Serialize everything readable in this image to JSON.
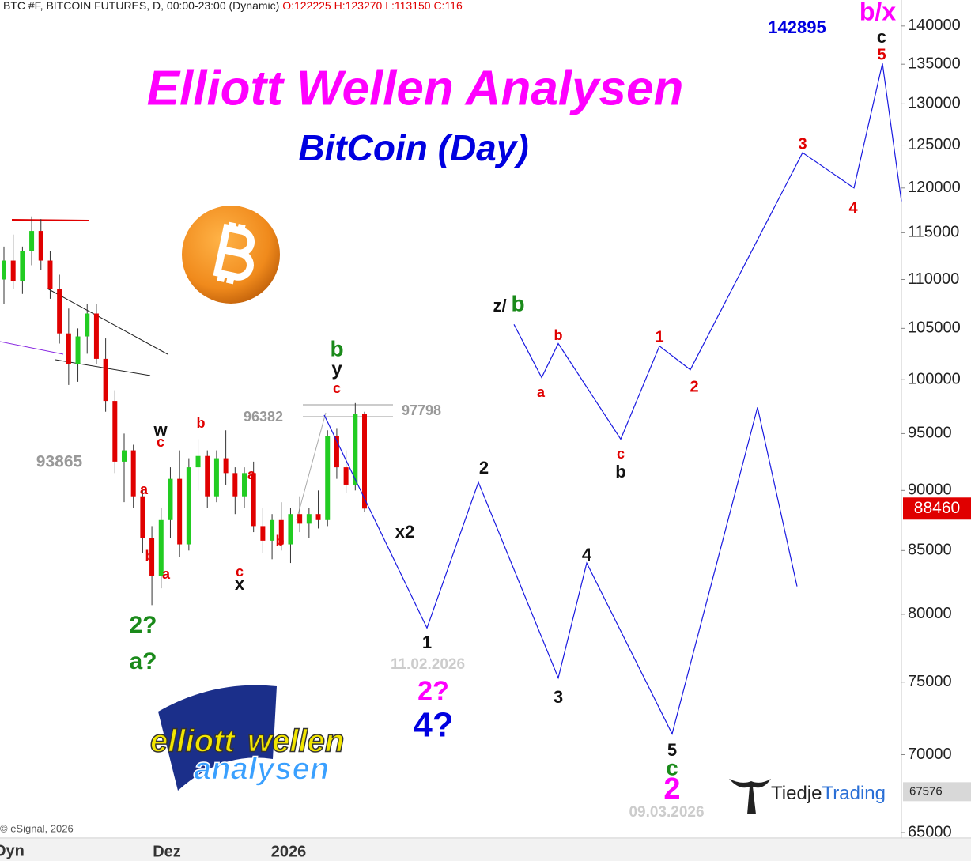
{
  "chart_data": {
    "type": "candlestick",
    "header": "BTC #F, BITCOIN FUTURES, D, 00:00-23:00 (Dynamic)",
    "ohlc": "O:122225 H:123270 L:113150 C:116",
    "title": "Elliott Wellen Analysen",
    "subtitle": "BitCoin (Day)",
    "log_scale": true,
    "ylim": [
      64660,
      143500
    ],
    "yticks": [
      140000,
      135000,
      130000,
      125000,
      120000,
      115000,
      110000,
      105000,
      100000,
      95000,
      90000,
      85000,
      80000,
      75000,
      70000,
      65000
    ],
    "x_labels": [
      "Dyn",
      "Dez",
      "2026"
    ],
    "up_color": "#22cc22",
    "down_color": "#e00000",
    "candles": {
      "open": [
        110000,
        112000,
        109800,
        113000,
        115200,
        112000,
        109000,
        104500,
        101500,
        104200,
        106500,
        102000,
        98000,
        92500,
        93500,
        89500,
        86000,
        83000,
        87500,
        91000,
        85500,
        92000,
        93000,
        89500,
        92800,
        91500,
        89500,
        91500,
        87000,
        85800,
        87500,
        85500,
        88000,
        87200,
        88000,
        87500,
        94800,
        92000,
        90500,
        96800
      ],
      "high": [
        113500,
        114800,
        113500,
        116800,
        116500,
        113000,
        110500,
        107000,
        105000,
        107500,
        107500,
        104000,
        99000,
        95000,
        94000,
        90000,
        87000,
        88500,
        92000,
        93500,
        92800,
        94500,
        93500,
        93500,
        95300,
        92000,
        92000,
        92500,
        88500,
        88000,
        89000,
        88500,
        89500,
        88500,
        90000,
        95300,
        95500,
        93500,
        97800,
        97000
      ],
      "low": [
        107500,
        109000,
        108500,
        111500,
        111000,
        108000,
        103500,
        99500,
        99800,
        102500,
        101500,
        97000,
        91500,
        89000,
        88500,
        84800,
        80700,
        82000,
        86000,
        84500,
        85000,
        90000,
        88500,
        89000,
        90500,
        88000,
        88500,
        86500,
        84800,
        84300,
        85000,
        84000,
        86500,
        86000,
        86800,
        87000,
        91000,
        89800,
        90000,
        88200
      ],
      "close": [
        112000,
        109800,
        113000,
        115200,
        112000,
        109000,
        104500,
        101500,
        104200,
        106500,
        102000,
        98000,
        92500,
        93500,
        89500,
        86000,
        83000,
        87500,
        91000,
        85500,
        92000,
        93000,
        89500,
        92800,
        91500,
        89500,
        91500,
        87000,
        85800,
        87500,
        85500,
        88000,
        87200,
        88000,
        87500,
        94800,
        92000,
        90500,
        96800,
        88460
      ]
    },
    "projections": [
      {
        "color": "#1a1ae0",
        "values": [
          96700,
          78960,
          90700,
          75300,
          84000,
          71400,
          97400,
          82150
        ]
      },
      {
        "color": "#1a1ae0",
        "values": [
          105400,
          100200,
          103500,
          94500,
          103250,
          100950,
          124100,
          120000,
          135100,
          118500
        ]
      }
    ],
    "last_price": 88460,
    "price_marker": 67576,
    "annotations": [
      "142895",
      "b/x",
      "c",
      "5",
      "3",
      "4",
      "1",
      "2",
      "b",
      "a",
      "c",
      "b",
      "z/",
      "b",
      "b",
      "y",
      "c",
      "96382",
      "97798",
      "x2",
      "2",
      "1",
      "11.02.2026",
      "2?",
      "4?",
      "4",
      "3",
      "5",
      "c",
      "2",
      "09.03.2026",
      "93865",
      "w",
      "c",
      "b",
      "a",
      "b",
      "a",
      "2?",
      "a?",
      "a",
      "b",
      "c",
      "x"
    ],
    "copyright": "© eSignal, 2026",
    "logo_words": [
      "elliott",
      "wellen",
      "analysen"
    ],
    "brand": [
      "Tiedje",
      "Trading"
    ]
  }
}
